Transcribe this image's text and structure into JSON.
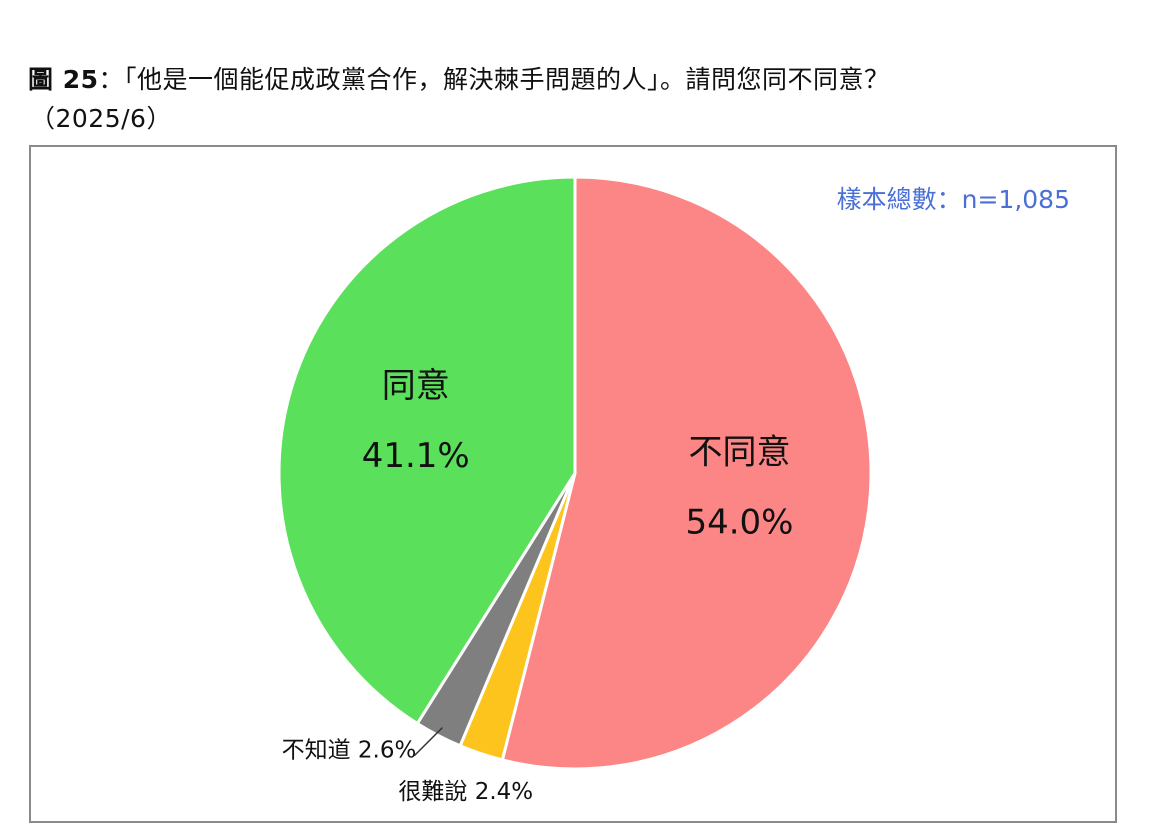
{
  "title": {
    "figure_number": "圖 25",
    "text": "：「他是一個能促成政黨合作，解決棘手問題的人」。請問您同不同意？",
    "date": "（2025/6）"
  },
  "sample_size": "樣本總數：n=1,085",
  "chart_data": {
    "type": "pie",
    "title": "圖 25：「他是一個能促成政黨合作，解決棘手問題的人」。請問您同不同意？（2025/6）",
    "start_angle_deg": 0,
    "direction": "clockwise",
    "slices": [
      {
        "label": "不同意",
        "value": 54.0,
        "value_label": "54.0%",
        "color": "#fc8685",
        "label_position": "inside"
      },
      {
        "label": "很難說",
        "value": 2.4,
        "value_label": "2.4%",
        "color": "#fcc41c",
        "label_position": "outside-bottom"
      },
      {
        "label": "不知道",
        "value": 2.6,
        "value_label": "2.6%",
        "color": "#7f7f7f",
        "label_position": "outside-bottom-left"
      },
      {
        "label": "同意",
        "value": 41.1,
        "value_label": "41.1%",
        "color": "#5ae05a",
        "label_position": "inside"
      }
    ]
  }
}
